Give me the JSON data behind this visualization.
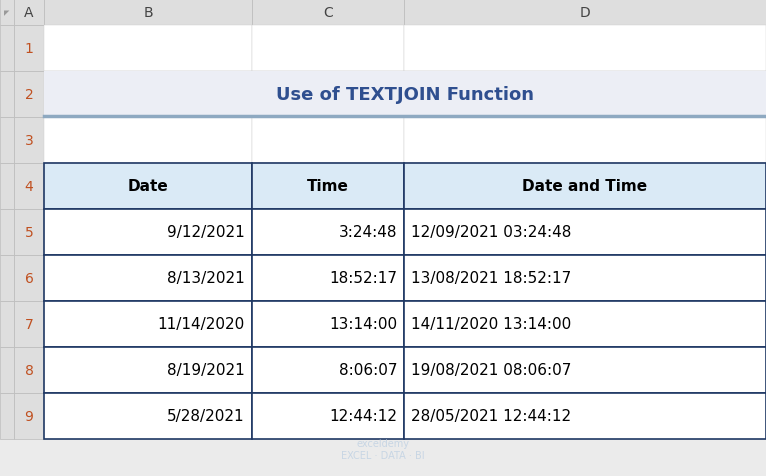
{
  "title": "Use of TEXTJOIN Function",
  "title_color": "#2F4F8F",
  "title_fontsize": 13,
  "col_headers": [
    "Date",
    "Time",
    "Date and Time"
  ],
  "rows": [
    [
      "9/12/2021",
      "3:24:48",
      "12/09/2021 03:24:48"
    ],
    [
      "8/13/2021",
      "18:52:17",
      "13/08/2021 18:52:17"
    ],
    [
      "11/14/2020",
      "13:14:00",
      "14/11/2020 13:14:00"
    ],
    [
      "8/19/2021",
      "8:06:07",
      "19/08/2021 08:06:07"
    ],
    [
      "5/28/2021",
      "12:44:12",
      "28/05/2021 12:44:12"
    ]
  ],
  "col_aligns": [
    "right",
    "right",
    "left"
  ],
  "header_bg": "#DAEAF6",
  "row_bg": "#FFFFFF",
  "grid_color": "#1F3864",
  "title_bg": "#ECEEF5",
  "title_bottom_border_color": "#8EA9C1",
  "excel_bg": "#EBEBEB",
  "col_header_bg": "#DEDEDE",
  "row_header_bg": "#DEDEDE",
  "col_header_text": "#444444",
  "row_header_text": "#C05020",
  "col_labels": [
    "A",
    "B",
    "C",
    "D"
  ],
  "row_labels": [
    "1",
    "2",
    "3",
    "4",
    "5",
    "6",
    "7",
    "8",
    "9"
  ],
  "header_fontsize": 11,
  "cell_fontsize": 11,
  "watermark_color": "#B0C8E0"
}
